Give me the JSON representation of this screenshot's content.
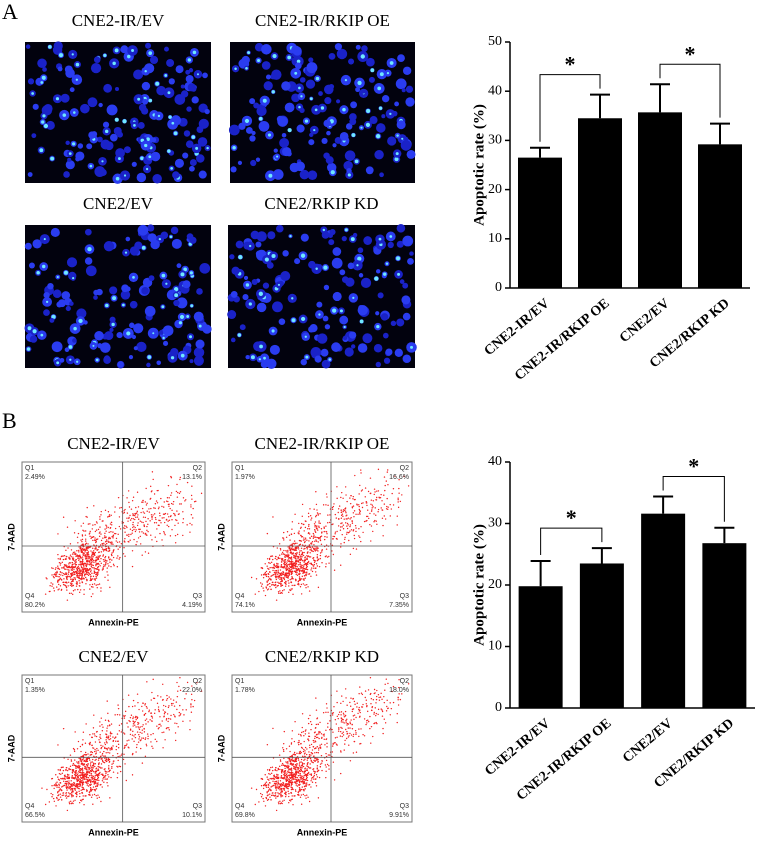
{
  "panel_labels": [
    "A",
    "B"
  ],
  "microscopy": [
    {
      "label": "CNE2-IR/EV"
    },
    {
      "label": "CNE2-IR/RKIP OE"
    },
    {
      "label": "CNE2/EV"
    },
    {
      "label": "CNE2/RKIP KD"
    }
  ],
  "flow": [
    {
      "title": "CNE2-IR/EV",
      "x_label": "Annexin-PE",
      "y_label": "7-AAD",
      "quadrants": [
        {
          "name": "Q1",
          "value": "2.49%"
        },
        {
          "name": "Q2",
          "value": "13.1%"
        },
        {
          "name": "Q4",
          "value": "80.2%"
        },
        {
          "name": "Q3",
          "value": "4.19%"
        }
      ]
    },
    {
      "title": "CNE2-IR/RKIP OE",
      "x_label": "Annexin-PE",
      "y_label": "7-AAD",
      "quadrants": [
        {
          "name": "Q1",
          "value": "1.97%"
        },
        {
          "name": "Q2",
          "value": "16.6%"
        },
        {
          "name": "Q4",
          "value": "74.1%"
        },
        {
          "name": "Q3",
          "value": "7.35%"
        }
      ]
    },
    {
      "title": "CNE2/EV",
      "x_label": "Annexin-PE",
      "y_label": "7-AAD",
      "quadrants": [
        {
          "name": "Q1",
          "value": "1.35%"
        },
        {
          "name": "Q2",
          "value": "22.0%"
        },
        {
          "name": "Q4",
          "value": "66.5%"
        },
        {
          "name": "Q3",
          "value": "10.1%"
        }
      ]
    },
    {
      "title": "CNE2/RKIP KD",
      "x_label": "Annexin-PE",
      "y_label": "7-AAD",
      "quadrants": [
        {
          "name": "Q1",
          "value": "1.78%"
        },
        {
          "name": "Q2",
          "value": "18.0%"
        },
        {
          "name": "Q4",
          "value": "69.8%"
        },
        {
          "name": "Q3",
          "value": "9.91%"
        }
      ]
    }
  ],
  "chart_data": [
    {
      "type": "bar",
      "y_label": "Apoptotic rate (%)",
      "categories": [
        "CNE2-IR/EV",
        "CNE2-IR/RKIP OE",
        "CNE2/EV",
        "CNE2/RKIP KD"
      ],
      "values": [
        26.5,
        34.5,
        35.7,
        29.2
      ],
      "errors": [
        2.0,
        4.8,
        5.7,
        4.2
      ],
      "color": "#000000",
      "ylim": [
        0,
        50
      ],
      "yticks": [
        0,
        10,
        20,
        30,
        40,
        50
      ],
      "significance": [
        {
          "text": "*",
          "between": [
            0,
            1
          ]
        },
        {
          "text": "*",
          "between": [
            2,
            3
          ]
        }
      ]
    },
    {
      "type": "bar",
      "y_label": "Apoptotic rate (%)",
      "categories": [
        "CNE2-IR/EV",
        "CNE2-IR/RKIP OE",
        "CNE2/EV",
        "CNE2/RKIP KD"
      ],
      "values": [
        19.8,
        23.5,
        31.6,
        26.8
      ],
      "errors": [
        4.1,
        2.5,
        2.8,
        2.5
      ],
      "color": "#000000",
      "ylim": [
        0,
        40
      ],
      "yticks": [
        0,
        10,
        20,
        30,
        40
      ],
      "significance": [
        {
          "text": "*",
          "between": [
            0,
            1
          ]
        },
        {
          "text": "*",
          "between": [
            2,
            3
          ]
        }
      ]
    }
  ]
}
